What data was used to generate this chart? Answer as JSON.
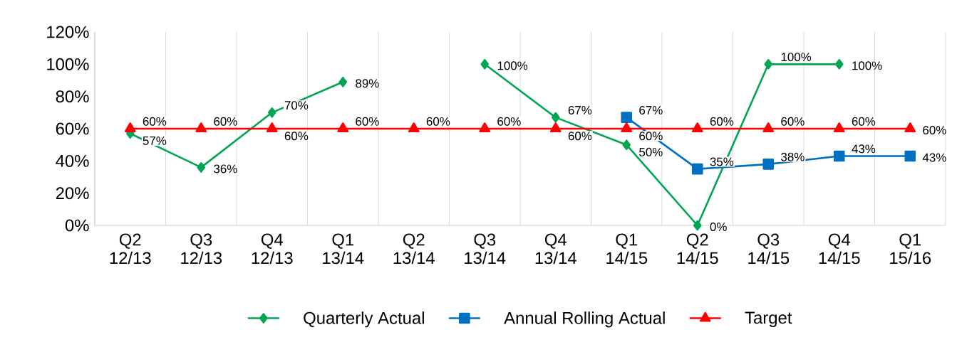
{
  "chart_data": {
    "type": "line",
    "categories": [
      "Q2 12/13",
      "Q3 12/13",
      "Q4 12/13",
      "Q1 13/14",
      "Q2 13/14",
      "Q3 13/14",
      "Q4 13/14",
      "Q1 14/15",
      "Q2 14/15",
      "Q3 14/15",
      "Q4 14/15",
      "Q1 15/16"
    ],
    "series": [
      {
        "name": "Quarterly Actual",
        "color": "#00a651",
        "marker": "diamond",
        "values": [
          57,
          36,
          70,
          89,
          null,
          100,
          67,
          50,
          0,
          100,
          100,
          null
        ],
        "value_labels": [
          "57%",
          "36%",
          "70%",
          "89%",
          null,
          "100%",
          "67%",
          "50%",
          "0%",
          "100%",
          "100%",
          null
        ]
      },
      {
        "name": "Annual Rolling Actual",
        "color": "#0070c0",
        "marker": "square",
        "values": [
          null,
          null,
          null,
          null,
          null,
          null,
          null,
          67,
          35,
          38,
          43,
          43
        ],
        "value_labels": [
          null,
          null,
          null,
          null,
          null,
          null,
          null,
          "67%",
          "35%",
          "38%",
          "43%",
          "43%"
        ]
      },
      {
        "name": "Target",
        "color": "#ff0000",
        "marker": "triangle",
        "values": [
          60,
          60,
          60,
          60,
          60,
          60,
          60,
          60,
          60,
          60,
          60,
          60
        ],
        "value_labels": [
          "60%",
          "60%",
          "60%",
          "60%",
          "60%",
          "60%",
          "60%",
          "60%",
          "60%",
          "60%",
          "60%",
          "60%"
        ]
      }
    ],
    "ylim": [
      0,
      120
    ],
    "yticks": [
      {
        "value": 0,
        "label": "0%"
      },
      {
        "value": 20,
        "label": "20%"
      },
      {
        "value": 40,
        "label": "40%"
      },
      {
        "value": 60,
        "label": "60%"
      },
      {
        "value": 80,
        "label": "80%"
      },
      {
        "value": 100,
        "label": "100%"
      },
      {
        "value": 120,
        "label": "120%"
      }
    ],
    "grid": "x",
    "legend": "bottom",
    "line_style": "solid"
  }
}
